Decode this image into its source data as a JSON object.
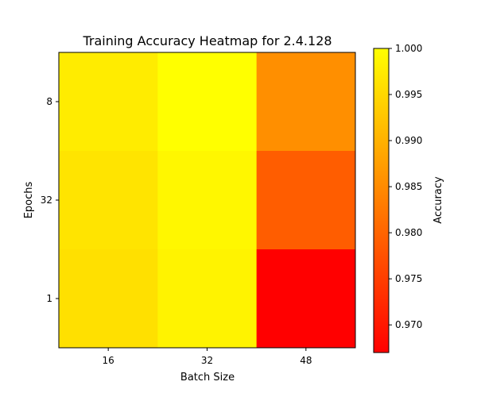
{
  "chart_data": {
    "type": "heatmap",
    "title": "Training Accuracy Heatmap for 2.4.128",
    "xlabel": "Batch Size",
    "ylabel": "Epochs",
    "x_categories": [
      "16",
      "32",
      "48"
    ],
    "y_categories": [
      "8",
      "32",
      "1"
    ],
    "values": [
      [
        0.9975,
        1.0,
        0.9855
      ],
      [
        0.9965,
        0.999,
        0.979
      ],
      [
        0.996,
        0.9985,
        0.967
      ]
    ],
    "colorbar": {
      "label": "Accuracy",
      "min": 0.967,
      "max": 1.0,
      "ticks": [
        "0.970",
        "0.975",
        "0.980",
        "0.985",
        "0.990",
        "0.995",
        "1.000"
      ],
      "colormap": "autumn"
    }
  }
}
